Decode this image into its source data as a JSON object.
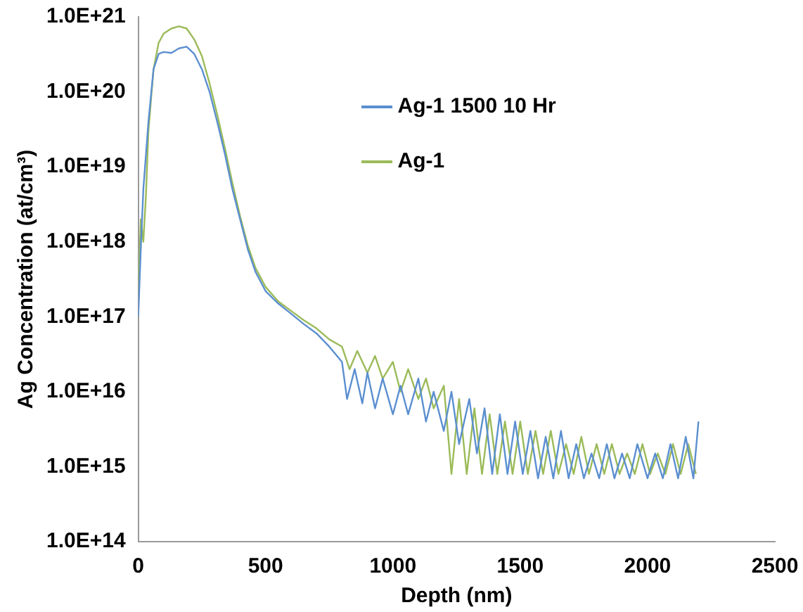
{
  "chart_data": {
    "type": "line",
    "xlabel": "Depth (nm)",
    "ylabel": "Ag Concentration (at/cm³)",
    "log": "y",
    "grid": false,
    "legend": "top right",
    "marker": "none",
    "line_style": "solid",
    "xlim": [
      0,
      2500
    ],
    "xticks": [
      0,
      500,
      1000,
      1500,
      2000,
      2500
    ],
    "ylim": [
      100000000000000.0,
      1e+21
    ],
    "yticks": [
      {
        "value": 100000000000000.0,
        "label": "1.0E+14"
      },
      {
        "value": 1000000000000000.0,
        "label": "1.0E+15"
      },
      {
        "value": 1e+16,
        "label": "1.0E+16"
      },
      {
        "value": 1e+17,
        "label": "1.0E+17"
      },
      {
        "value": 1e+18,
        "label": "1.0E+18"
      },
      {
        "value": 1e+19,
        "label": "1.0E+19"
      },
      {
        "value": 1e+20,
        "label": "1.0E+20"
      },
      {
        "value": 1e+21,
        "label": "1.0E+21"
      }
    ],
    "series": [
      {
        "name": "Ag-1 1500 10 Hr",
        "color": "#5b8fd0",
        "x": [
          0,
          10,
          20,
          40,
          60,
          80,
          100,
          130,
          160,
          190,
          220,
          250,
          280,
          310,
          340,
          370,
          400,
          430,
          460,
          500,
          550,
          600,
          650,
          700,
          750,
          800,
          820,
          850,
          880,
          900,
          930,
          960,
          1000,
          1030,
          1060,
          1100,
          1130,
          1160,
          1200,
          1230,
          1260,
          1300,
          1330,
          1360,
          1390,
          1420,
          1450,
          1480,
          1510,
          1540,
          1570,
          1600,
          1630,
          1660,
          1690,
          1720,
          1750,
          1780,
          1810,
          1840,
          1870,
          1900,
          1930,
          1960,
          2000,
          2030,
          2060,
          2090,
          2120,
          2150,
          2180,
          2200
        ],
        "values": [
          1e+17,
          8e+17,
          5e+18,
          4e+19,
          2e+20,
          3.2e+20,
          3.4e+20,
          3.3e+20,
          3.8e+20,
          4e+20,
          3.2e+20,
          2e+20,
          1e+20,
          4e+19,
          1.5e+19,
          5e+18,
          2e+18,
          8e+17,
          4e+17,
          2.2e+17,
          1.5e+17,
          1.1e+17,
          8e+16,
          6e+16,
          4e+16,
          2.5e+16,
          8000000000000000.0,
          2e+16,
          7000000000000000.0,
          1.8e+16,
          6000000000000000.0,
          1.5e+16,
          5000000000000000.0,
          1.2e+16,
          5000000000000000.0,
          1.5e+16,
          4000000000000000.0,
          1e+16,
          3000000000000000.0,
          1e+16,
          2000000000000000.0,
          8000000000000000.0,
          1500000000000000.0,
          6000000000000000.0,
          800000000000000.0,
          5000000000000000.0,
          800000000000000.0,
          4000000000000000.0,
          800000000000000.0,
          3000000000000000.0,
          700000000000000.0,
          2500000000000000.0,
          700000000000000.0,
          3000000000000000.0,
          700000000000000.0,
          2000000000000000.0,
          700000000000000.0,
          1500000000000000.0,
          700000000000000.0,
          2000000000000000.0,
          700000000000000.0,
          1500000000000000.0,
          700000000000000.0,
          2000000000000000.0,
          700000000000000.0,
          1500000000000000.0,
          700000000000000.0,
          2000000000000000.0,
          700000000000000.0,
          2500000000000000.0,
          700000000000000.0,
          4000000000000000.0
        ]
      },
      {
        "name": "Ag-1",
        "color": "#9bbb59",
        "x": [
          0,
          10,
          20,
          30,
          40,
          60,
          80,
          100,
          130,
          160,
          190,
          220,
          250,
          280,
          310,
          340,
          370,
          400,
          430,
          460,
          500,
          550,
          600,
          650,
          700,
          750,
          800,
          830,
          860,
          900,
          930,
          960,
          1000,
          1030,
          1060,
          1100,
          1130,
          1160,
          1200,
          1230,
          1260,
          1290,
          1320,
          1350,
          1380,
          1410,
          1440,
          1470,
          1500,
          1530,
          1560,
          1590,
          1620,
          1650,
          1680,
          1710,
          1740,
          1770,
          1800,
          1830,
          1860,
          1890,
          1920,
          1950,
          1980,
          2010,
          2040,
          2070,
          2100,
          2130,
          2160,
          2190
        ],
        "values": [
          2e+17,
          2e+18,
          1e+18,
          4e+18,
          3e+19,
          2e+20,
          4.5e+20,
          6e+20,
          7e+20,
          7.5e+20,
          7e+20,
          5e+20,
          3e+20,
          1.3e+20,
          5e+19,
          1.8e+19,
          6e+18,
          2.2e+18,
          9e+17,
          4.5e+17,
          2.5e+17,
          1.6e+17,
          1.2e+17,
          9e+16,
          7e+16,
          5e+16,
          4e+16,
          2e+16,
          3.5e+16,
          1.8e+16,
          3e+16,
          1.5e+16,
          2.5e+16,
          1e+16,
          2e+16,
          8000000000000000.0,
          1.5e+16,
          6000000000000000.0,
          1.2e+16,
          800000000000000.0,
          8000000000000000.0,
          800000000000000.0,
          6000000000000000.0,
          800000000000000.0,
          5000000000000000.0,
          800000000000000.0,
          4000000000000000.0,
          800000000000000.0,
          4000000000000000.0,
          800000000000000.0,
          3000000000000000.0,
          800000000000000.0,
          3000000000000000.0,
          800000000000000.0,
          2000000000000000.0,
          800000000000000.0,
          2500000000000000.0,
          800000000000000.0,
          2000000000000000.0,
          800000000000000.0,
          2000000000000000.0,
          800000000000000.0,
          1500000000000000.0,
          800000000000000.0,
          2000000000000000.0,
          800000000000000.0,
          1500000000000000.0,
          800000000000000.0,
          2000000000000000.0,
          800000000000000.0,
          2000000000000000.0,
          800000000000000.0
        ]
      }
    ]
  }
}
